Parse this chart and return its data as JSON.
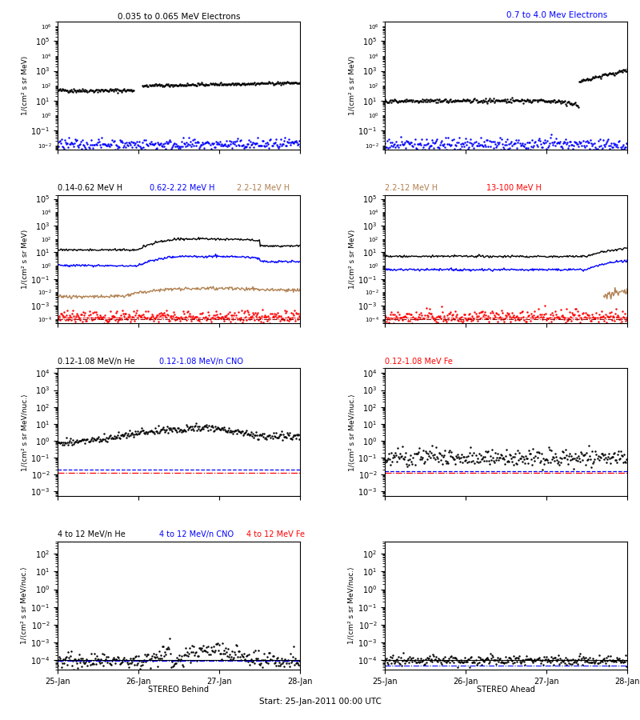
{
  "title_top": "0.035 to 0.065 MeV Electrons",
  "title_top_right": "0.7 to 4.0 Mev Electrons",
  "title_top_color": "black",
  "title_top_right_color": "blue",
  "panel_titles": [
    [
      "0.14-0.62 MeV H",
      "0.62-2.22 MeV H",
      "2.2-12 MeV H",
      "13-100 MeV H"
    ],
    [
      "0.12-1.08 MeV/n He",
      "0.12-1.08 MeV/n CNO",
      "0.12-1.08 MeV Fe"
    ],
    [
      "4 to 12 MeV/n He",
      "4 to 12 MeV/n CNO",
      "4 to 12 MeV Fe"
    ]
  ],
  "panel_title_colors": [
    [
      "black",
      "blue",
      "#b08050",
      "red"
    ],
    [
      "black",
      "blue",
      "red"
    ],
    [
      "black",
      "blue",
      "red"
    ]
  ],
  "xlabel_behind": "STEREO Behind",
  "xlabel_ahead": "STEREO Ahead",
  "start_label": "Start: 25-Jan-2011 00:00 UTC",
  "xtick_labels": [
    "25-Jan",
    "26-Jan",
    "27-Jan",
    "28-Jan"
  ],
  "ylabel_mev": "1/(cm² s sr MeV)",
  "ylabel_mevnuc": "1/⟨cm² s sr MeV/nuc.⟩",
  "background_color": "white",
  "seed": 42,
  "npoints": 300
}
